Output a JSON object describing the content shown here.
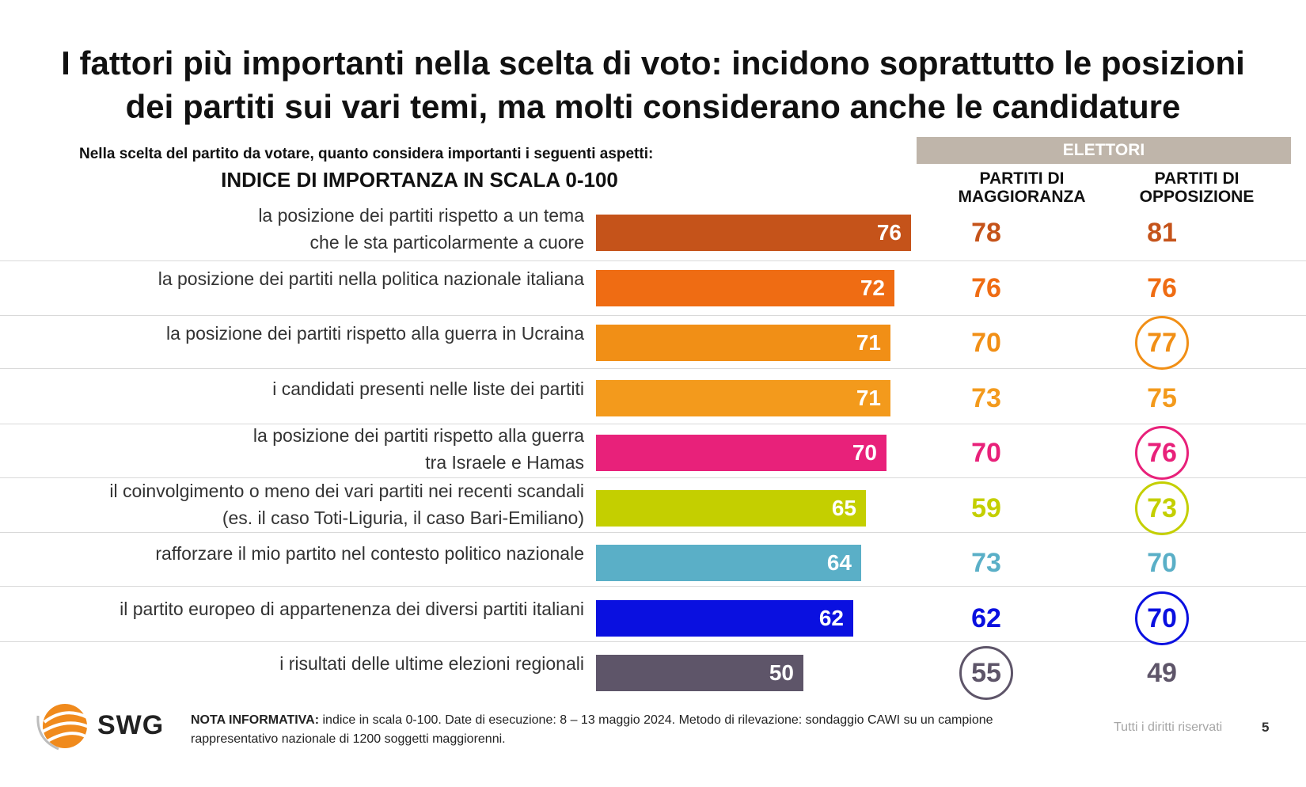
{
  "title": {
    "line1": "I fattori più importanti nella scelta di voto: incidono soprattutto le posizioni",
    "line2": "dei partiti sui vari temi, ma molti considerano anche le candidature"
  },
  "question": "Nella scelta del partito da votare, quanto considera importanti i seguenti aspetti:",
  "subtitle": "INDICE DI IMPORTANZA IN SCALA 0-100",
  "table_header": {
    "group": "ELETTORI",
    "col_magg_l1": "PARTITI DI",
    "col_magg_l2": "MAGGIORANZA",
    "col_opp_l1": "PARTITI DI",
    "col_opp_l2": "OPPOSIZIONE"
  },
  "chart_data": {
    "type": "bar",
    "orientation": "horizontal",
    "xlim": [
      0,
      100
    ],
    "rows": [
      {
        "label1": "la posizione dei partiti rispetto a un tema",
        "label2": "che le sta particolarmente a cuore",
        "value": 76,
        "magg": 78,
        "opp": 81,
        "color": "#c5531a",
        "circle_magg": false,
        "circle_opp": false
      },
      {
        "label1": "la posizione dei partiti nella politica nazionale italiana",
        "label2": "",
        "value": 72,
        "magg": 76,
        "opp": 76,
        "color": "#ef6c13",
        "circle_magg": false,
        "circle_opp": false
      },
      {
        "label1": "la posizione dei partiti rispetto alla guerra in Ucraina",
        "label2": "",
        "value": 71,
        "magg": 70,
        "opp": 77,
        "color": "#f18f16",
        "circle_magg": false,
        "circle_opp": true
      },
      {
        "label1": "i candidati presenti nelle liste dei partiti",
        "label2": "",
        "value": 71,
        "magg": 73,
        "opp": 75,
        "color": "#f39a1c",
        "circle_magg": false,
        "circle_opp": false
      },
      {
        "label1": "la posizione dei partiti rispetto alla guerra",
        "label2": "tra Israele e Hamas",
        "value": 70,
        "magg": 70,
        "opp": 76,
        "color": "#e8217a",
        "circle_magg": false,
        "circle_opp": true
      },
      {
        "label1": "il coinvolgimento o meno dei vari partiti nei recenti scandali",
        "label2": "(es. il caso Toti-Liguria, il caso Bari-Emiliano)",
        "value": 65,
        "magg": 59,
        "opp": 73,
        "color": "#c4cf00",
        "circle_magg": false,
        "circle_opp": true
      },
      {
        "label1": "rafforzare il mio partito nel contesto politico nazionale",
        "label2": "",
        "value": 64,
        "magg": 73,
        "opp": 70,
        "color": "#5aafc7",
        "circle_magg": false,
        "circle_opp": false
      },
      {
        "label1": "il partito europeo di appartenenza dei diversi partiti italiani",
        "label2": "",
        "value": 62,
        "magg": 62,
        "opp": 70,
        "color": "#0a10e0",
        "circle_magg": false,
        "circle_opp": true
      },
      {
        "label1": "i risultati delle ultime elezioni regionali",
        "label2": "",
        "value": 50,
        "magg": 55,
        "opp": 49,
        "color": "#5e5569",
        "circle_magg": true,
        "circle_opp": false
      }
    ]
  },
  "footer": {
    "logo": "SWG",
    "note_label": "NOTA INFORMATIVA:",
    "note_line1": " indice in scala 0-100. Date di esecuzione: 8 – 13 maggio 2024. Metodo di rilevazione: sondaggio CAWI su un campione",
    "note_line2": "rappresentativo nazionale di 1200 soggetti maggiorenni.",
    "rights": "Tutti i diritti riservati",
    "page": "5"
  }
}
